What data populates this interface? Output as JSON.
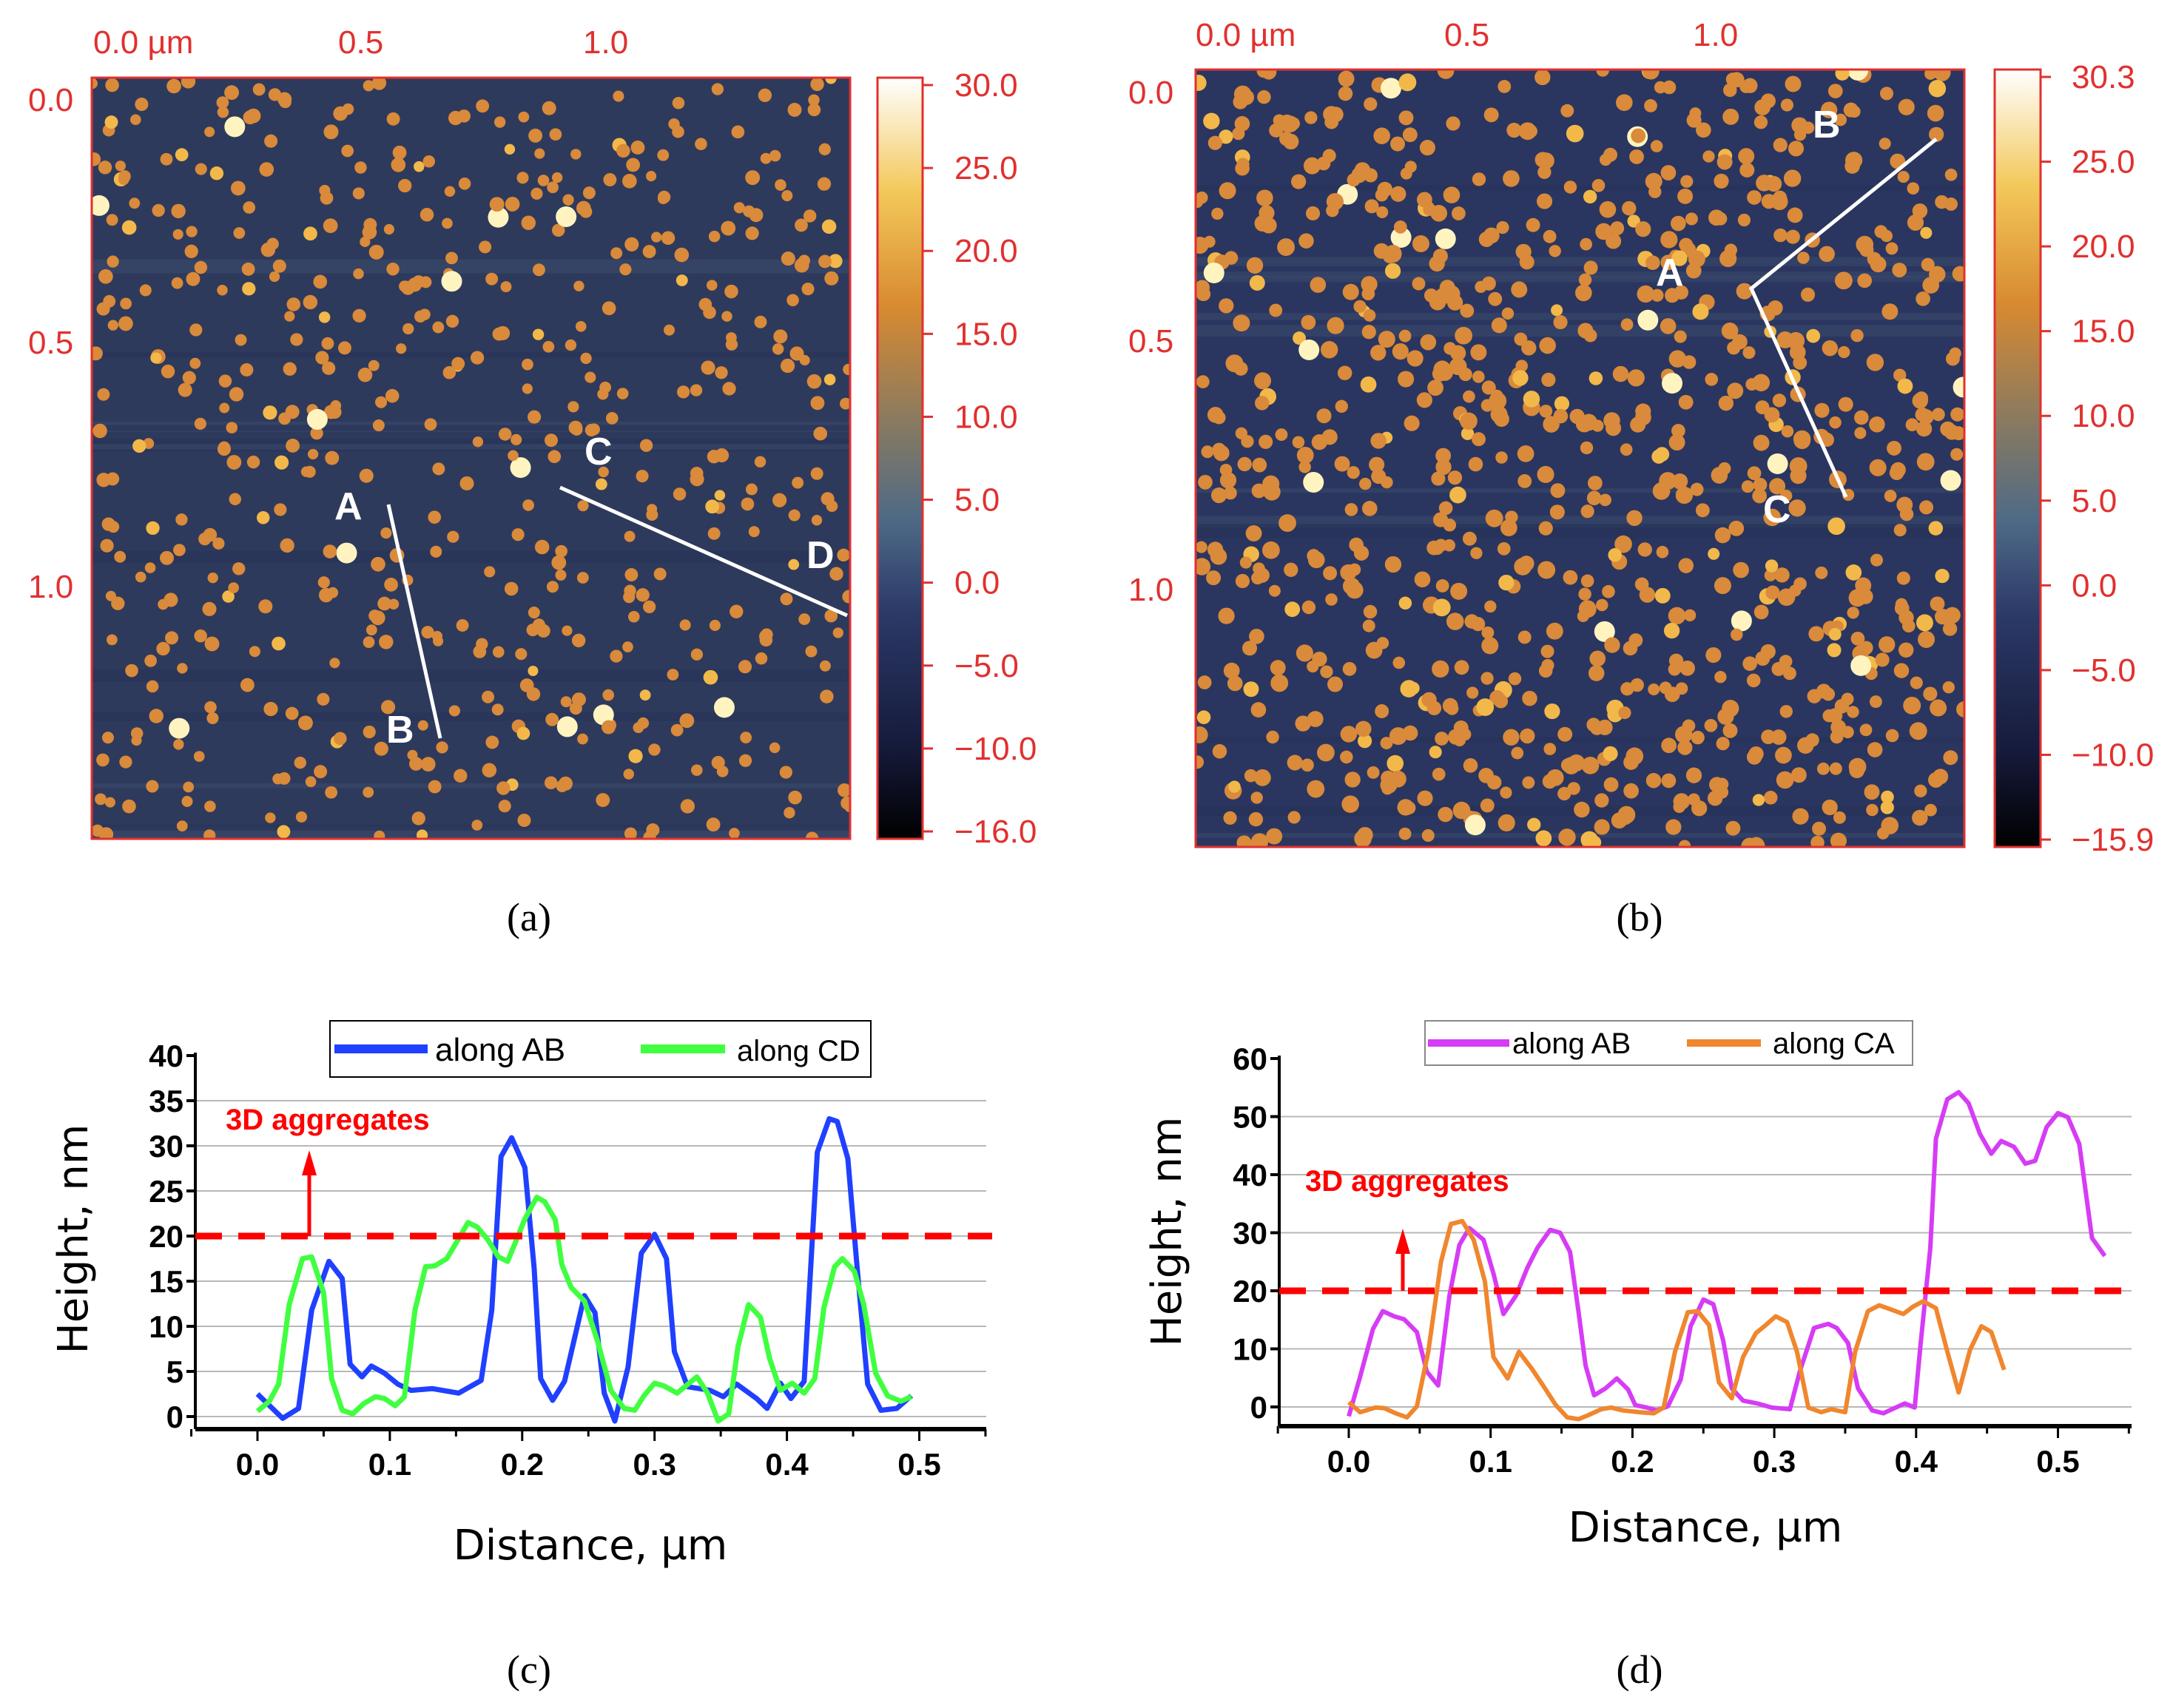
{
  "panels": {
    "a": {
      "caption": "(a)",
      "top_ticks": [
        "0.0 µm",
        "0.5",
        "1.0"
      ],
      "left_ticks": [
        "0.0",
        "0.5",
        "1.0"
      ],
      "colorbar_ticks": [
        "30.0",
        "25.0",
        "20.0",
        "15.0",
        "10.0",
        "5.0",
        "0.0",
        "−5.0",
        "−10.0",
        "−16.0"
      ],
      "points": [
        "A",
        "B",
        "C",
        "D"
      ]
    },
    "b": {
      "caption": "(b)",
      "top_ticks": [
        "0.0 µm",
        "0.5",
        "1.0"
      ],
      "left_ticks": [
        "0.0",
        "0.5",
        "1.0"
      ],
      "colorbar_ticks": [
        "30.3",
        "25.0",
        "20.0",
        "15.0",
        "10.0",
        "5.0",
        "0.0",
        "−5.0",
        "−10.0",
        "−15.9"
      ],
      "points": [
        "A",
        "B",
        "C"
      ]
    },
    "c": {
      "caption": "(c)"
    },
    "d": {
      "caption": "(d)"
    }
  },
  "colors": {
    "ab_c": "#2040ff",
    "cd_c": "#40ff40",
    "ab_d": "#d63cf5",
    "ca_d": "#f0862e",
    "threshold": "#ff0000"
  },
  "chart_data": [
    {
      "type": "line",
      "title": "",
      "xlabel": "Distance, µm",
      "ylabel": "Height, nm",
      "xlim": [
        -0.05,
        0.55
      ],
      "ylim": [
        0,
        40
      ],
      "xticks": [
        "0.0",
        "0.1",
        "0.2",
        "0.3",
        "0.4",
        "0.5"
      ],
      "yticks": [
        "0",
        "5",
        "10",
        "15",
        "20",
        "25",
        "30",
        "35",
        "40"
      ],
      "grid": "horizontal",
      "threshold": 20,
      "annotation": "3D aggregates",
      "legend": [
        "along AB",
        "along CD"
      ],
      "legend_placement": "top",
      "series": [
        {
          "name": "along AB",
          "x": [
            0,
            0.019,
            0.031,
            0.041,
            0.054,
            0.064,
            0.07,
            0.079,
            0.086,
            0.096,
            0.106,
            0.116,
            0.132,
            0.152,
            0.169,
            0.177,
            0.184,
            0.192,
            0.202,
            0.209,
            0.214,
            0.223,
            0.232,
            0.247,
            0.255,
            0.262,
            0.27,
            0.28,
            0.29,
            0.3,
            0.309,
            0.315,
            0.325,
            0.342,
            0.352,
            0.362,
            0.377,
            0.385,
            0.395,
            0.403,
            0.413,
            0.423,
            0.432,
            0.438,
            0.446,
            0.453,
            0.461,
            0.471,
            0.483,
            0.494
          ],
          "y": [
            2.5,
            -0.2,
            0.9,
            11.8,
            17.2,
            15.3,
            5.8,
            4.4,
            5.6,
            4.8,
            3.6,
            2.9,
            3.1,
            2.6,
            4.0,
            11.8,
            28.8,
            30.9,
            27.6,
            16.5,
            4.2,
            1.8,
            3.9,
            13.4,
            11.5,
            2.6,
            -0.5,
            5.5,
            18.1,
            20.2,
            17.5,
            7.2,
            3.3,
            2.9,
            2.2,
            3.6,
            2.0,
            0.9,
            3.7,
            2.0,
            3.9,
            29.3,
            33.0,
            32.7,
            28.6,
            16.6,
            3.6,
            0.7,
            0.9,
            2.3
          ]
        },
        {
          "name": "along CD",
          "x": [
            0,
            0.009,
            0.016,
            0.024,
            0.034,
            0.041,
            0.05,
            0.056,
            0.064,
            0.072,
            0.08,
            0.089,
            0.096,
            0.104,
            0.111,
            0.119,
            0.127,
            0.134,
            0.143,
            0.152,
            0.159,
            0.166,
            0.174,
            0.182,
            0.189,
            0.196,
            0.202,
            0.211,
            0.217,
            0.225,
            0.23,
            0.237,
            0.247,
            0.257,
            0.267,
            0.277,
            0.285,
            0.292,
            0.3,
            0.307,
            0.317,
            0.332,
            0.34,
            0.348,
            0.356,
            0.363,
            0.371,
            0.38,
            0.387,
            0.395,
            0.404,
            0.413,
            0.421,
            0.428,
            0.436,
            0.442,
            0.451,
            0.458,
            0.467,
            0.476,
            0.486,
            0.494
          ],
          "y": [
            0.6,
            1.7,
            3.6,
            12.4,
            17.5,
            17.7,
            13.7,
            4.2,
            0.7,
            0.3,
            1.4,
            2.2,
            2.0,
            1.2,
            2.2,
            11.8,
            16.6,
            16.7,
            17.5,
            19.7,
            21.5,
            21.0,
            19.6,
            17.7,
            17.2,
            19.7,
            21.9,
            24.3,
            23.8,
            21.8,
            16.8,
            14.3,
            12.8,
            8.3,
            2.9,
            0.9,
            0.7,
            2.3,
            3.7,
            3.4,
            2.6,
            4.4,
            2.6,
            -0.5,
            0.3,
            7.7,
            12.4,
            11.0,
            6.4,
            2.9,
            3.7,
            2.6,
            4.2,
            12.1,
            16.6,
            17.5,
            16.1,
            12.4,
            4.8,
            2.3,
            1.7,
            2.2
          ]
        }
      ]
    },
    {
      "type": "line",
      "title": "",
      "xlabel": "Distance, µm",
      "ylabel": "Height, nm",
      "xlim": [
        -0.05,
        0.55
      ],
      "ylim": [
        0,
        60
      ],
      "xticks": [
        "0.0",
        "0.1",
        "0.2",
        "0.3",
        "0.4",
        "0.5"
      ],
      "yticks": [
        "0",
        "10",
        "20",
        "30",
        "40",
        "50",
        "60"
      ],
      "grid": "horizontal",
      "threshold": 20,
      "annotation": "3D aggregates",
      "legend": [
        "along AB",
        "along CA"
      ],
      "legend_placement": "top",
      "series": [
        {
          "name": "along AB",
          "x": [
            0,
            0.008,
            0.017,
            0.024,
            0.032,
            0.039,
            0.048,
            0.055,
            0.063,
            0.071,
            0.078,
            0.085,
            0.095,
            0.102,
            0.109,
            0.118,
            0.126,
            0.133,
            0.142,
            0.149,
            0.156,
            0.162,
            0.167,
            0.173,
            0.181,
            0.189,
            0.197,
            0.202,
            0.21,
            0.217,
            0.225,
            0.234,
            0.241,
            0.25,
            0.257,
            0.264,
            0.27,
            0.278,
            0.288,
            0.298,
            0.311,
            0.318,
            0.328,
            0.338,
            0.344,
            0.352,
            0.359,
            0.369,
            0.377,
            0.383,
            0.392,
            0.399,
            0.403,
            0.41,
            0.414,
            0.422,
            0.43,
            0.437,
            0.445,
            0.453,
            0.46,
            0.469,
            0.477,
            0.484,
            0.492,
            0.5,
            0.507,
            0.515,
            0.524,
            0.533
          ],
          "y": [
            -1.6,
            5.2,
            13.4,
            16.5,
            15.6,
            15.1,
            12.9,
            6.1,
            3.7,
            19.2,
            27.9,
            30.8,
            28.8,
            23.0,
            16.0,
            19.2,
            24.0,
            27.4,
            30.5,
            30.0,
            26.7,
            16.3,
            7.1,
            2.0,
            3.2,
            4.9,
            3.0,
            0.3,
            -0.1,
            -0.6,
            0.1,
            4.7,
            13.9,
            18.5,
            17.7,
            11.4,
            3.2,
            1.1,
            0.6,
            -0.1,
            -0.4,
            6.1,
            13.6,
            14.3,
            13.6,
            11.0,
            3.2,
            -0.6,
            -1.1,
            -0.4,
            0.6,
            -0.1,
            10.5,
            27.4,
            46.2,
            53.0,
            54.2,
            52.3,
            47.0,
            43.6,
            45.8,
            44.8,
            41.9,
            42.4,
            48.2,
            50.6,
            49.9,
            45.3,
            29.1,
            26.0
          ]
        },
        {
          "name": "along CA",
          "x": [
            0,
            0.008,
            0.019,
            0.025,
            0.033,
            0.041,
            0.048,
            0.056,
            0.065,
            0.072,
            0.08,
            0.088,
            0.096,
            0.102,
            0.112,
            0.12,
            0.129,
            0.137,
            0.146,
            0.154,
            0.162,
            0.169,
            0.178,
            0.185,
            0.193,
            0.205,
            0.215,
            0.222,
            0.23,
            0.239,
            0.246,
            0.254,
            0.261,
            0.27,
            0.278,
            0.287,
            0.294,
            0.301,
            0.309,
            0.316,
            0.324,
            0.333,
            0.34,
            0.35,
            0.357,
            0.366,
            0.374,
            0.382,
            0.391,
            0.398,
            0.405,
            0.414,
            0.422,
            0.43,
            0.438,
            0.446,
            0.453,
            0.462
          ],
          "y": [
            0.8,
            -0.9,
            -0.1,
            -0.2,
            -1.1,
            -1.8,
            0.1,
            9.5,
            25.0,
            31.5,
            32.0,
            28.8,
            21.6,
            8.6,
            4.9,
            9.5,
            6.6,
            3.7,
            0.3,
            -1.8,
            -2.1,
            -1.4,
            -0.4,
            -0.1,
            -0.6,
            -0.9,
            -1.1,
            -0.1,
            9.5,
            16.3,
            16.5,
            14.1,
            4.2,
            1.5,
            8.6,
            12.7,
            14.1,
            15.6,
            14.6,
            9.5,
            -0.1,
            -0.9,
            -0.4,
            -0.9,
            9.5,
            16.5,
            17.5,
            16.8,
            16.0,
            17.3,
            18.2,
            17.0,
            9.5,
            2.5,
            9.8,
            13.9,
            12.9,
            6.4
          ]
        }
      ]
    }
  ]
}
